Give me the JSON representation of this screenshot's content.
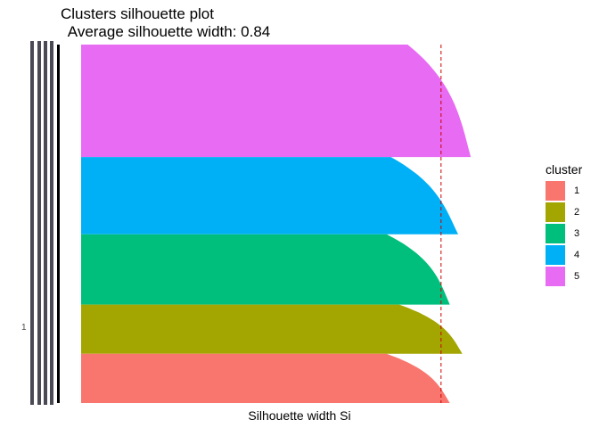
{
  "chart_data": {
    "type": "area",
    "title": "Clusters silhouette plot",
    "subtitle": " Average silhouette width: 0.84",
    "xlabel": "Silhouette width Si",
    "ylabel_tick": "1",
    "average_silhouette_width": 0.84,
    "ylim": [
      0,
      1
    ],
    "grid": false,
    "legend_position": "right",
    "legend": {
      "title": "cluster",
      "entries": [
        {
          "label": "1",
          "color": "#F8766D"
        },
        {
          "label": "2",
          "color": "#A3A500"
        },
        {
          "label": "3",
          "color": "#00BF7D"
        },
        {
          "label": "4",
          "color": "#00B0F6"
        },
        {
          "label": "5",
          "color": "#E76BF3"
        }
      ]
    },
    "series": [
      {
        "name": "5",
        "color": "#E76BF3",
        "size_share": 0.32,
        "max_width": 0.93,
        "min_width": 0.89
      },
      {
        "name": "4",
        "color": "#00B0F6",
        "size_share": 0.22,
        "max_width": 0.9,
        "min_width": 0.85
      },
      {
        "name": "3",
        "color": "#00BF7D",
        "size_share": 0.2,
        "max_width": 0.88,
        "min_width": 0.84
      },
      {
        "name": "2",
        "color": "#A3A500",
        "size_share": 0.14,
        "max_width": 0.91,
        "min_width": 0.87
      },
      {
        "name": "1",
        "color": "#F8766D",
        "size_share": 0.14,
        "max_width": 0.88,
        "min_width": 0.84
      }
    ]
  }
}
